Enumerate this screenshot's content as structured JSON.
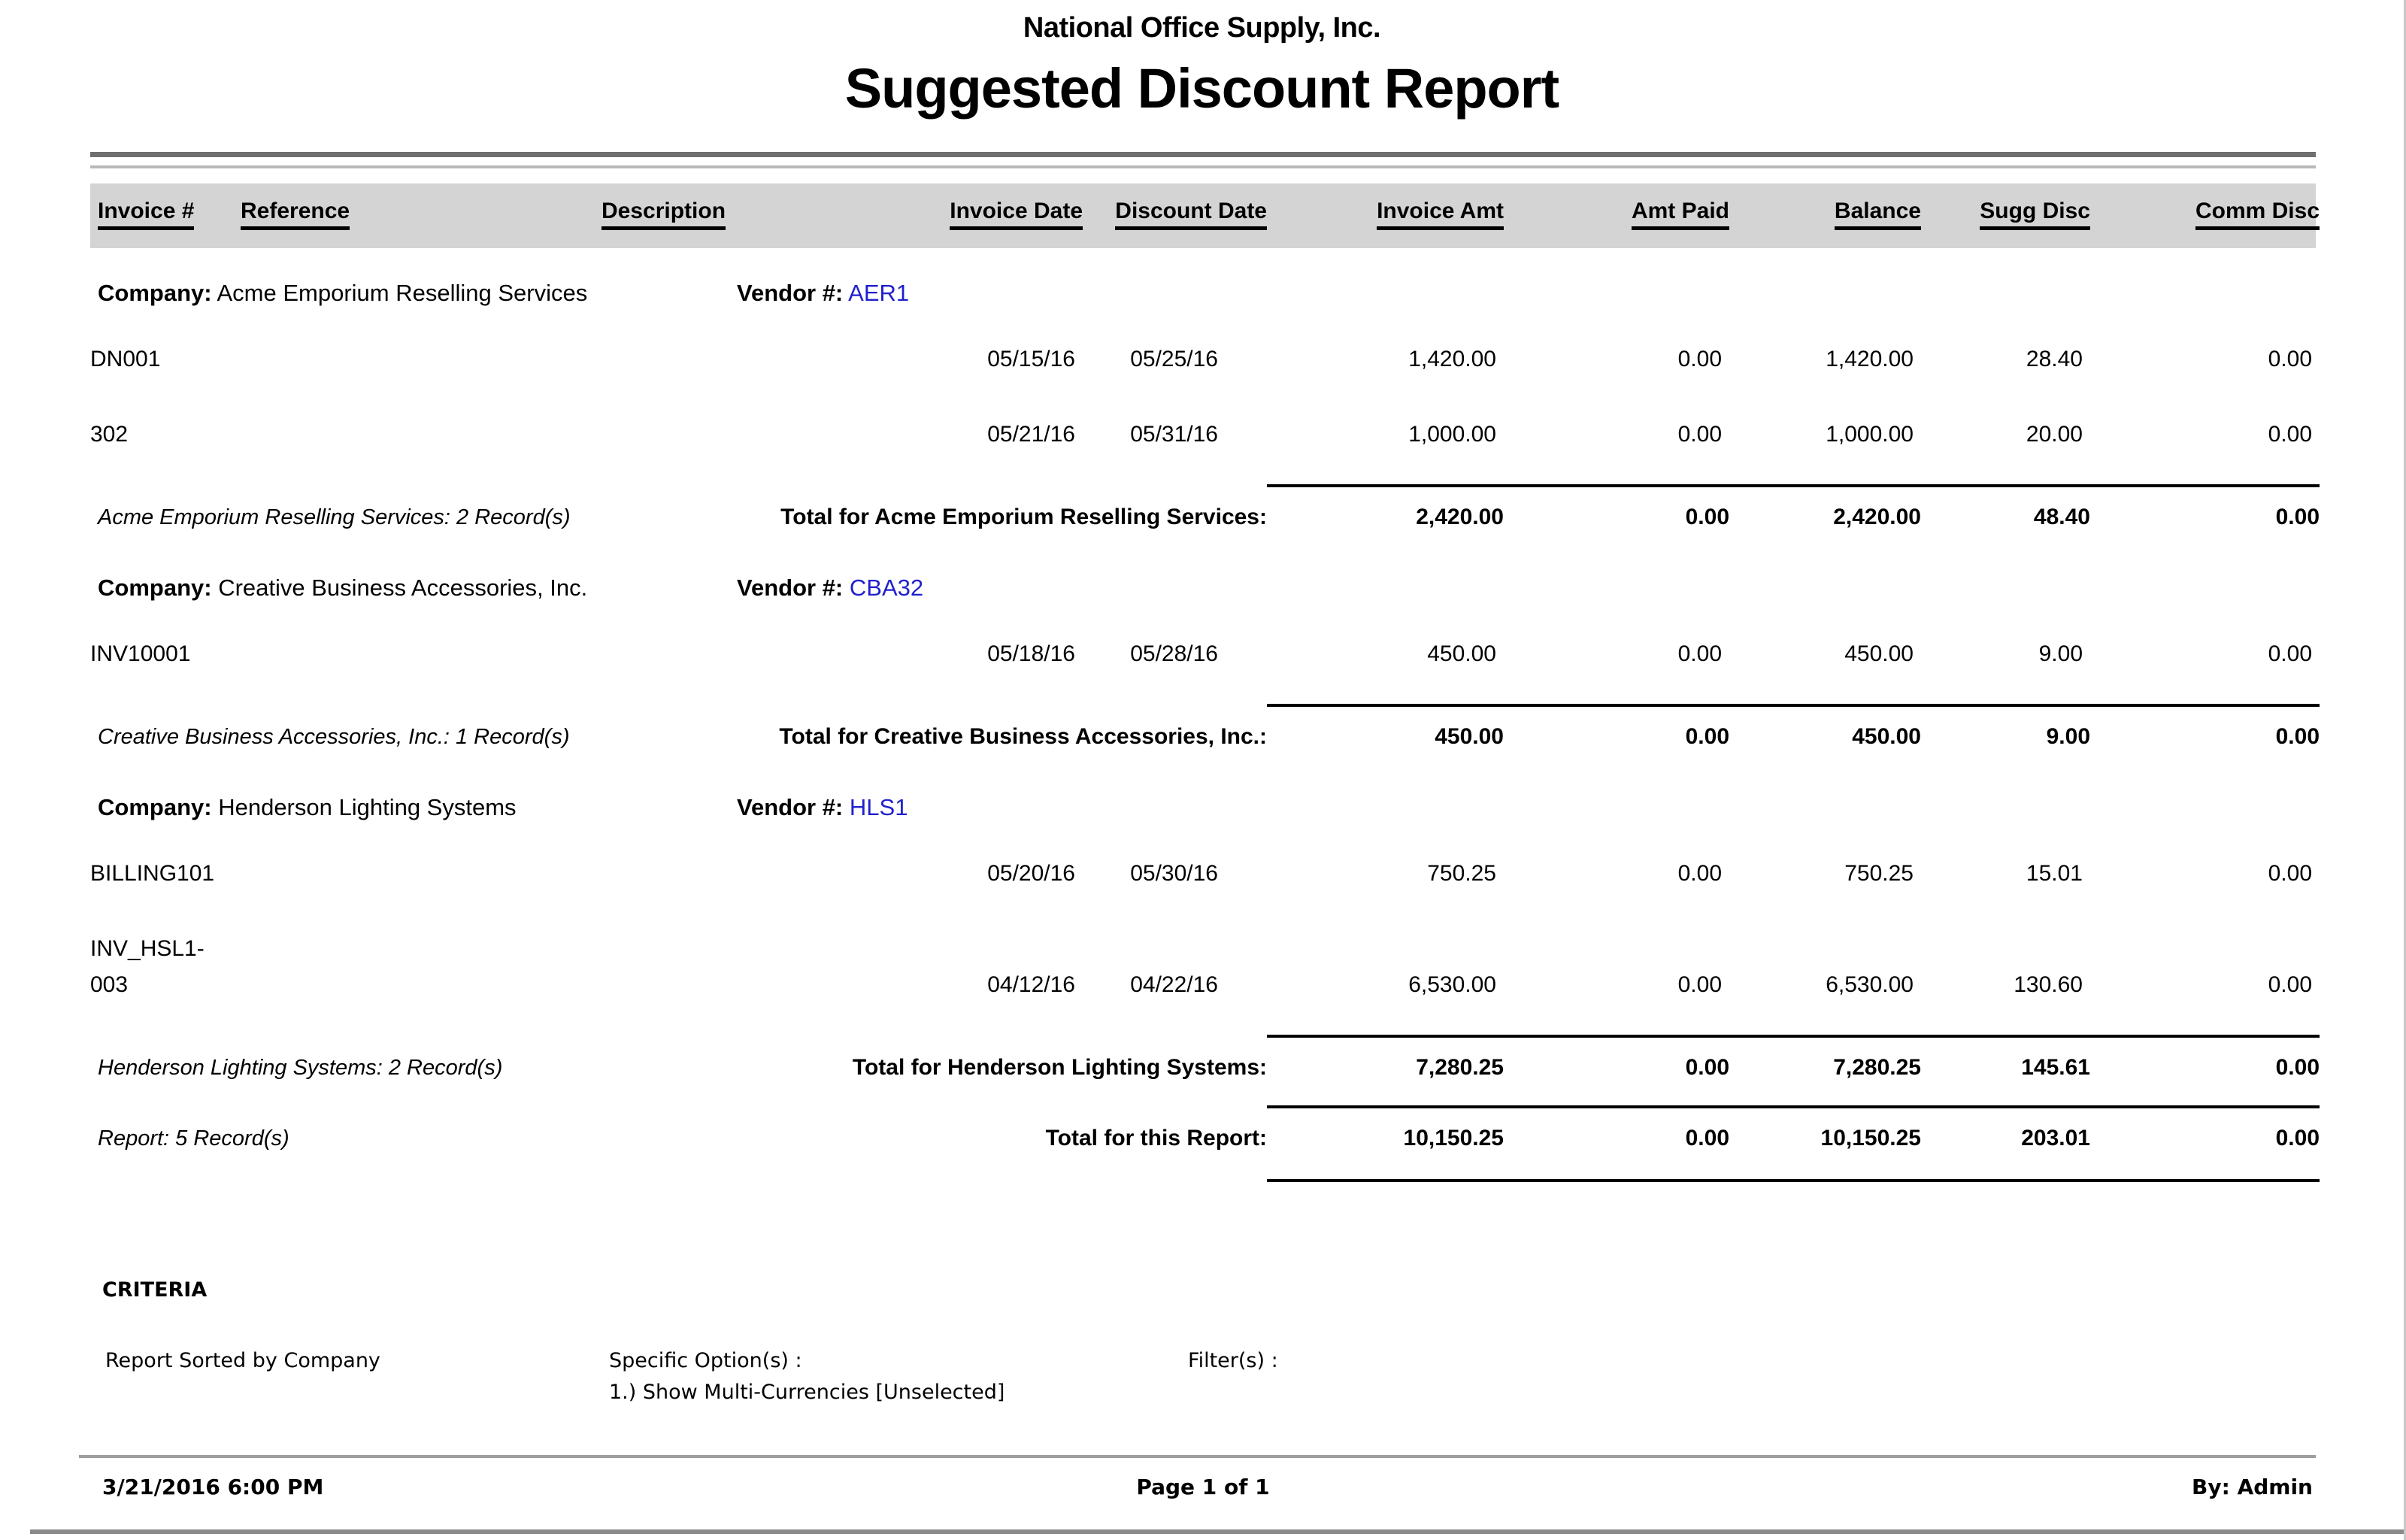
{
  "report": {
    "company_name": "National Office Supply, Inc.",
    "title": "Suggested Discount Report",
    "columns": [
      "Invoice #",
      "Reference",
      "Description",
      "Invoice Date",
      "Discount Date",
      "Invoice Amt",
      "Amt Paid",
      "Balance",
      "Sugg Disc",
      "Comm Disc"
    ],
    "groups": [
      {
        "company_label": "Company:",
        "company": "Acme Emporium Reselling Services",
        "vendor_label": "Vendor #:",
        "vendor": "AER1",
        "rows": [
          {
            "invoice": "DN001",
            "reference": "",
            "description": "",
            "invoice_date": "05/15/16",
            "discount_date": "05/25/16",
            "invoice_amt": "1,420.00",
            "amt_paid": "0.00",
            "balance": "1,420.00",
            "sugg_disc": "28.40",
            "comm_disc": "0.00"
          },
          {
            "invoice": "302",
            "reference": "",
            "description": "",
            "invoice_date": "05/21/16",
            "discount_date": "05/31/16",
            "invoice_amt": "1,000.00",
            "amt_paid": "0.00",
            "balance": "1,000.00",
            "sugg_disc": "20.00",
            "comm_disc": "0.00"
          }
        ],
        "summary": {
          "records": "Acme Emporium Reselling Services: 2 Record(s)",
          "total_label": "Total for Acme Emporium Reselling Services:",
          "invoice_amt": "2,420.00",
          "amt_paid": "0.00",
          "balance": "2,420.00",
          "sugg_disc": "48.40",
          "comm_disc": "0.00"
        }
      },
      {
        "company_label": "Company:",
        "company": "Creative Business Accessories, Inc.",
        "vendor_label": "Vendor #:",
        "vendor": "CBA32",
        "rows": [
          {
            "invoice": "INV10001",
            "reference": "",
            "description": "",
            "invoice_date": "05/18/16",
            "discount_date": "05/28/16",
            "invoice_amt": "450.00",
            "amt_paid": "0.00",
            "balance": "450.00",
            "sugg_disc": "9.00",
            "comm_disc": "0.00"
          }
        ],
        "summary": {
          "records": "Creative Business Accessories, Inc.: 1 Record(s)",
          "total_label": "Total for Creative Business Accessories, Inc.:",
          "invoice_amt": "450.00",
          "amt_paid": "0.00",
          "balance": "450.00",
          "sugg_disc": "9.00",
          "comm_disc": "0.00"
        }
      },
      {
        "company_label": "Company:",
        "company": "Henderson Lighting Systems",
        "vendor_label": "Vendor #:",
        "vendor": "HLS1",
        "rows": [
          {
            "invoice": "BILLING101",
            "reference": "",
            "description": "",
            "invoice_date": "05/20/16",
            "discount_date": "05/30/16",
            "invoice_amt": "750.25",
            "amt_paid": "0.00",
            "balance": "750.25",
            "sugg_disc": "15.01",
            "comm_disc": "0.00"
          },
          {
            "invoice": "INV_HSL1-003",
            "reference": "",
            "description": "",
            "invoice_date": "04/12/16",
            "discount_date": "04/22/16",
            "invoice_amt": "6,530.00",
            "amt_paid": "0.00",
            "balance": "6,530.00",
            "sugg_disc": "130.60",
            "comm_disc": "0.00"
          }
        ],
        "summary": {
          "records": "Henderson Lighting Systems: 2 Record(s)",
          "total_label": "Total for Henderson Lighting Systems:",
          "invoice_amt": "7,280.25",
          "amt_paid": "0.00",
          "balance": "7,280.25",
          "sugg_disc": "145.61",
          "comm_disc": "0.00"
        }
      }
    ],
    "report_summary": {
      "records": "Report: 5 Record(s)",
      "total_label": "Total for this Report:",
      "invoice_amt": "10,150.25",
      "amt_paid": "0.00",
      "balance": "10,150.25",
      "sugg_disc": "203.01",
      "comm_disc": "0.00"
    },
    "criteria": {
      "heading": "CRITERIA",
      "sorted_by": "Report Sorted by Company",
      "specific_options_label": "Specific Option(s) :",
      "specific_options": [
        "1.) Show Multi-Currencies [Unselected]"
      ],
      "filters_label": "Filter(s) :"
    },
    "footer": {
      "datetime": "3/21/2016 6:00 PM",
      "page": "Page 1 of 1",
      "by": "By: Admin"
    },
    "colors": {
      "vendor_link": "#2020cc",
      "header_band": "#d4d4d4",
      "rule_dark": "#6f6f6f",
      "rule_light": "#b9b9b9"
    }
  }
}
